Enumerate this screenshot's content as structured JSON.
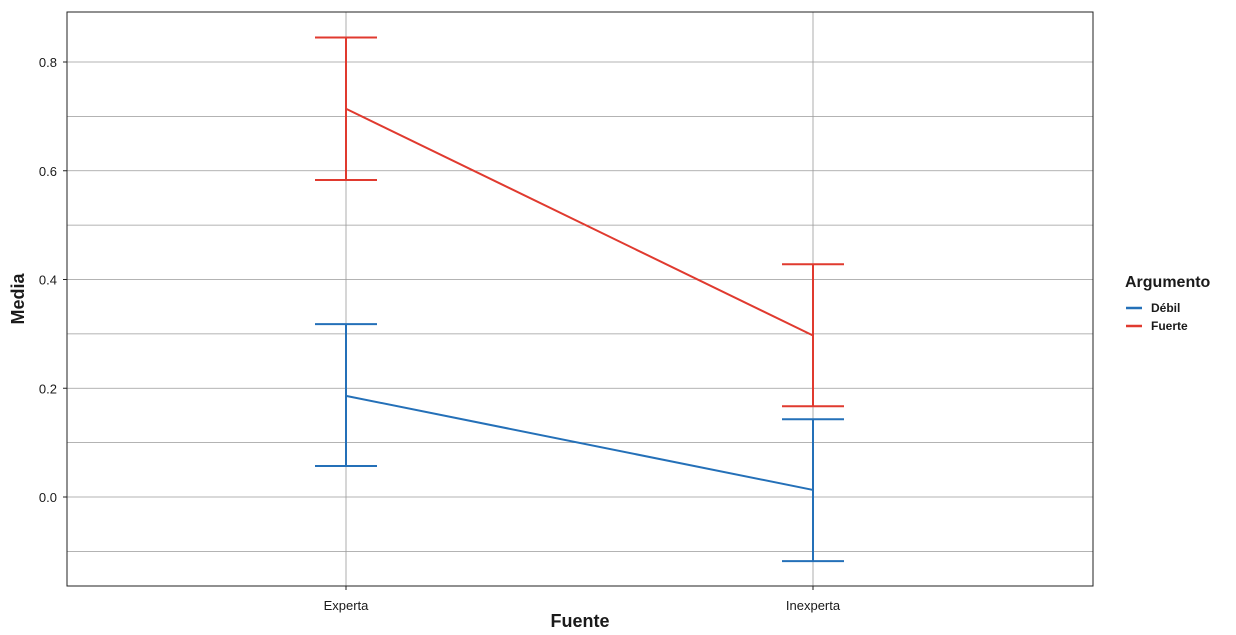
{
  "chart_data": {
    "type": "line",
    "title": "",
    "xlabel": "Fuente",
    "ylabel": "Media",
    "categories": [
      "Experta",
      "Inexperta"
    ],
    "ylim": [
      -0.17,
      0.9
    ],
    "yticks": [
      "0.0",
      "0.2",
      "0.4",
      "0.6",
      "0.8"
    ],
    "grid": true,
    "legend": {
      "title": "Argumento",
      "position": "right"
    },
    "series": [
      {
        "name": "Débil",
        "color": "#2470b8",
        "values": [
          0.186,
          0.013
        ],
        "lower": [
          0.057,
          -0.118
        ],
        "upper": [
          0.318,
          0.143
        ]
      },
      {
        "name": "Fuerte",
        "color": "#e03a2f",
        "values": [
          0.714,
          0.297
        ],
        "lower": [
          0.583,
          0.167
        ],
        "upper": [
          0.845,
          0.428
        ]
      }
    ]
  }
}
